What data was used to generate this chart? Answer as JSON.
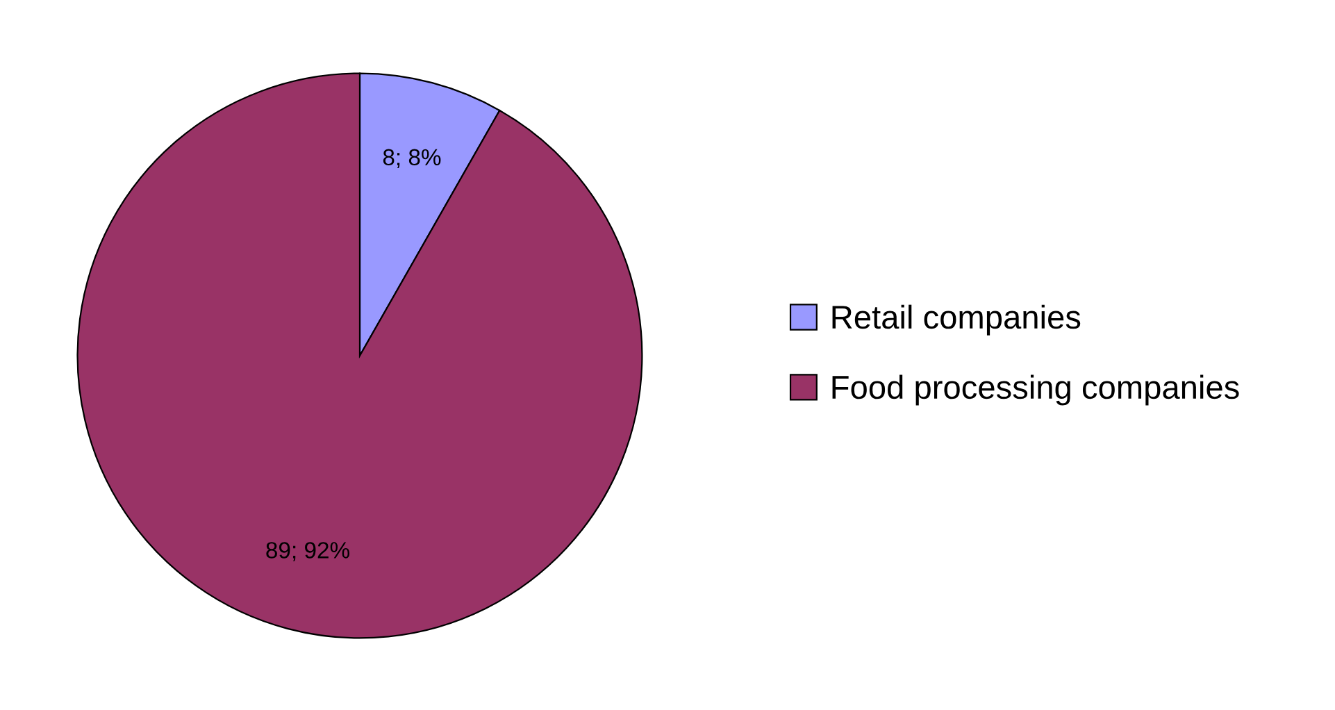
{
  "chart_data": {
    "type": "pie",
    "categories": [
      "Retail companies",
      "Food processing companies"
    ],
    "values": [
      8,
      89
    ],
    "value_labels": [
      "8; 8%",
      "89; 92%"
    ],
    "colors": [
      "#9999ff",
      "#993366"
    ],
    "legend": "right"
  }
}
